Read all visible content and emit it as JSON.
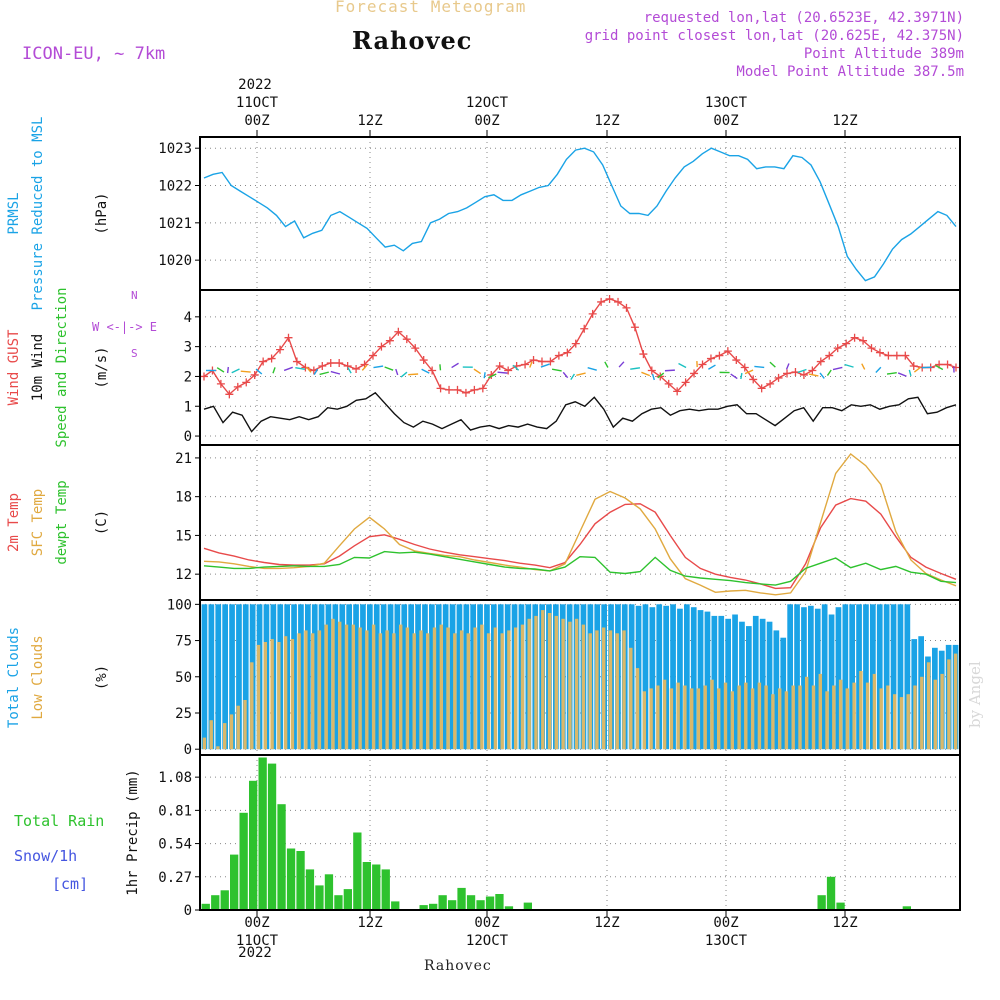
{
  "header": {
    "title": "Forecast Meteogram",
    "location": "Rahovec",
    "model": "ICON-EU, ~ 7km",
    "requested": "requested lon,lat (20.6523E, 42.3971N)",
    "gridpoint": "grid point closest lon,lat (20.625E, 42.375N)",
    "altitude": "Point Altitude 389m",
    "model_altitude": "Model Point Altitude 387.5m"
  },
  "time_axis": {
    "top_year": "2022",
    "labels": [
      {
        "date": "11OCT",
        "hour": "00Z"
      },
      {
        "date": "",
        "hour": "12Z"
      },
      {
        "date": "12OCT",
        "hour": "00Z"
      },
      {
        "date": "",
        "hour": "12Z"
      },
      {
        "date": "13OCT",
        "hour": "00Z"
      },
      {
        "date": "",
        "hour": "12Z"
      }
    ],
    "bottom_year": "2022"
  },
  "footer": "Rahovec",
  "credit": "by Angel",
  "chart_data": [
    {
      "type": "line",
      "panel": "pressure",
      "ylabel_lines": [
        {
          "text": "PRMSL",
          "color": "#1aa3e6"
        },
        {
          "text": "Pressure Reduced to MSL",
          "color": "#1aa3e6"
        }
      ],
      "unit": "(hPa)",
      "ylim": [
        1019.2,
        1023.3
      ],
      "yticks": [
        1020,
        1021,
        1022,
        1023
      ],
      "series": [
        {
          "name": "PRMSL",
          "color": "#1aa3e6",
          "values": [
            1022.2,
            1022.3,
            1022.35,
            1022.0,
            1021.85,
            1021.7,
            1021.55,
            1021.4,
            1021.2,
            1020.9,
            1021.05,
            1020.6,
            1020.72,
            1020.8,
            1021.2,
            1021.3,
            1021.15,
            1021.0,
            1020.85,
            1020.6,
            1020.35,
            1020.4,
            1020.25,
            1020.45,
            1020.5,
            1021.0,
            1021.1,
            1021.25,
            1021.3,
            1021.4,
            1021.55,
            1021.7,
            1021.75,
            1021.6,
            1021.6,
            1021.75,
            1021.85,
            1021.95,
            1022.0,
            1022.3,
            1022.7,
            1022.95,
            1023.0,
            1022.9,
            1022.55,
            1022.0,
            1021.45,
            1021.25,
            1021.25,
            1021.2,
            1021.45,
            1021.85,
            1022.2,
            1022.5,
            1022.65,
            1022.85,
            1023.0,
            1022.9,
            1022.8,
            1022.8,
            1022.7,
            1022.45,
            1022.5,
            1022.5,
            1022.45,
            1022.8,
            1022.75,
            1022.55,
            1022.1,
            1021.5,
            1020.9,
            1020.1,
            1019.75,
            1019.45,
            1019.55,
            1019.9,
            1020.3,
            1020.55,
            1020.7,
            1020.9,
            1021.1,
            1021.3,
            1021.2,
            1020.9
          ]
        }
      ]
    },
    {
      "type": "line",
      "panel": "wind",
      "ylabel_lines": [
        {
          "text": "Wind GUST",
          "color": "#e84a4a"
        },
        {
          "text": "10m Wind",
          "color": "#111111"
        },
        {
          "text": "Speed and Direction",
          "color": "#2ec22e"
        }
      ],
      "unit": "(m/s)",
      "compass": {
        "west": "W",
        "east": "E",
        "north": "N",
        "south": "S"
      },
      "ylim": [
        -0.3,
        4.9
      ],
      "yticks": [
        0,
        1,
        2,
        3,
        4
      ],
      "series": [
        {
          "name": "Wind GUST",
          "color": "#e84a4a",
          "marker": "+",
          "values": [
            2.0,
            2.2,
            1.75,
            1.4,
            1.65,
            1.8,
            2.05,
            2.5,
            2.6,
            2.9,
            3.3,
            2.5,
            2.3,
            2.2,
            2.35,
            2.45,
            2.45,
            2.35,
            2.25,
            2.4,
            2.7,
            3.0,
            3.2,
            3.5,
            3.25,
            2.95,
            2.55,
            2.2,
            1.6,
            1.55,
            1.55,
            1.45,
            1.55,
            1.6,
            2.05,
            2.35,
            2.2,
            2.35,
            2.4,
            2.55,
            2.5,
            2.5,
            2.7,
            2.8,
            3.1,
            3.6,
            4.1,
            4.5,
            4.6,
            4.5,
            4.3,
            3.65,
            2.75,
            2.2,
            2.0,
            1.75,
            1.5,
            1.8,
            2.1,
            2.4,
            2.6,
            2.7,
            2.85,
            2.55,
            2.3,
            1.9,
            1.6,
            1.75,
            1.95,
            2.1,
            2.15,
            2.05,
            2.2,
            2.5,
            2.7,
            2.95,
            3.1,
            3.3,
            3.2,
            2.95,
            2.8,
            2.7,
            2.7,
            2.7,
            2.35,
            2.3,
            2.3,
            2.4,
            2.4,
            2.3
          ]
        },
        {
          "name": "10m Wind",
          "color": "#111111",
          "values": [
            0.9,
            1.0,
            0.45,
            0.8,
            0.7,
            0.15,
            0.5,
            0.65,
            0.6,
            0.55,
            0.65,
            0.55,
            0.65,
            0.95,
            0.9,
            1.0,
            1.2,
            1.25,
            1.45,
            1.1,
            0.75,
            0.45,
            0.3,
            0.5,
            0.4,
            0.25,
            0.4,
            0.55,
            0.2,
            0.3,
            0.35,
            0.25,
            0.35,
            0.3,
            0.4,
            0.3,
            0.25,
            0.5,
            1.05,
            1.15,
            1.0,
            1.3,
            0.9,
            0.3,
            0.6,
            0.5,
            0.75,
            0.9,
            0.95,
            0.7,
            0.85,
            0.9,
            0.85,
            0.9,
            0.9,
            1.0,
            1.05,
            0.75,
            0.75,
            0.55,
            0.35,
            0.6,
            0.85,
            0.95,
            0.5,
            0.95,
            0.95,
            0.85,
            1.05,
            1.0,
            1.05,
            0.9,
            1.0,
            1.05,
            1.25,
            1.3,
            0.75,
            0.8,
            0.95,
            1.05
          ]
        }
      ]
    },
    {
      "type": "line",
      "panel": "temperature",
      "ylabel_lines": [
        {
          "text": "2m Temp",
          "color": "#e84a4a"
        },
        {
          "text": "SFC Temp",
          "color": "#e0a940"
        },
        {
          "text": "dewpt Temp",
          "color": "#2ec22e"
        }
      ],
      "unit": "(C)",
      "ylim": [
        10.0,
        22.0
      ],
      "yticks": [
        12,
        15,
        18,
        21
      ],
      "series": [
        {
          "name": "2m Temp",
          "color": "#e84a4a",
          "values": [
            14.0,
            13.65,
            13.4,
            13.1,
            12.9,
            12.75,
            12.7,
            12.7,
            12.8,
            13.4,
            14.2,
            14.9,
            15.05,
            14.7,
            14.3,
            13.95,
            13.7,
            13.5,
            13.35,
            13.2,
            13.05,
            12.85,
            12.7,
            12.5,
            12.9,
            14.3,
            15.9,
            16.8,
            17.4,
            17.45,
            16.8,
            15.0,
            13.3,
            12.45,
            12.0,
            11.75,
            11.55,
            11.25,
            10.9,
            10.95,
            12.8,
            15.6,
            17.35,
            17.85,
            17.65,
            16.65,
            14.9,
            13.3,
            12.55,
            12.05,
            11.6
          ]
        },
        {
          "name": "SFC Temp",
          "color": "#e0a940",
          "values": [
            13.0,
            12.95,
            12.8,
            12.6,
            12.45,
            12.45,
            12.5,
            12.6,
            12.85,
            14.2,
            15.5,
            16.4,
            15.5,
            14.3,
            13.8,
            13.6,
            13.45,
            13.35,
            13.1,
            12.9,
            12.7,
            12.55,
            12.35,
            12.25,
            12.8,
            15.3,
            17.8,
            18.4,
            17.9,
            17.05,
            15.5,
            13.2,
            11.65,
            11.15,
            10.6,
            10.7,
            10.75,
            10.55,
            10.4,
            10.55,
            12.2,
            16.0,
            19.8,
            21.3,
            20.4,
            18.95,
            15.3,
            13.1,
            12.05,
            11.55,
            11.1
          ]
        },
        {
          "name": "dewpt Temp",
          "color": "#2ec22e",
          "values": [
            12.65,
            12.55,
            12.45,
            12.45,
            12.55,
            12.6,
            12.65,
            12.6,
            12.6,
            12.75,
            13.3,
            13.25,
            13.75,
            13.65,
            13.7,
            13.55,
            13.35,
            13.15,
            12.95,
            12.75,
            12.55,
            12.45,
            12.4,
            12.25,
            12.55,
            13.35,
            13.3,
            12.15,
            12.05,
            12.2,
            13.3,
            12.3,
            11.85,
            11.7,
            11.6,
            11.5,
            11.35,
            11.25,
            11.15,
            11.45,
            12.45,
            12.85,
            13.25,
            12.5,
            12.85,
            12.35,
            12.6,
            12.15,
            12.0,
            11.45,
            11.35
          ]
        }
      ]
    },
    {
      "type": "bar",
      "panel": "clouds",
      "ylabel_lines": [
        {
          "text": "Total Clouds",
          "color": "#1aa3e6"
        },
        {
          "text": "Low Clouds",
          "color": "#e0a940"
        }
      ],
      "unit": "(%)",
      "ylim": [
        -4,
        103
      ],
      "yticks": [
        0,
        25,
        50,
        75,
        100
      ],
      "series": [
        {
          "name": "Total Clouds",
          "color": "#1aa3e6",
          "values": [
            100,
            100,
            100,
            100,
            100,
            100,
            100,
            100,
            100,
            100,
            100,
            100,
            100,
            100,
            100,
            100,
            100,
            100,
            100,
            100,
            100,
            100,
            100,
            100,
            100,
            100,
            100,
            100,
            100,
            100,
            100,
            100,
            100,
            100,
            100,
            100,
            100,
            100,
            100,
            100,
            100,
            100,
            100,
            100,
            100,
            100,
            100,
            100,
            100,
            100,
            100,
            100,
            100,
            100,
            100,
            100,
            100,
            100,
            100,
            100,
            100,
            100,
            100,
            99,
            100,
            98,
            100,
            99,
            100,
            97,
            100,
            98,
            96,
            95,
            92,
            92,
            90,
            93,
            88,
            85,
            92,
            90,
            88,
            82,
            77,
            100,
            100,
            98,
            99,
            97,
            100,
            93,
            98,
            100,
            100,
            100,
            100,
            100,
            100,
            100,
            100,
            100,
            100,
            76,
            78,
            64,
            70,
            68,
            72,
            72
          ]
        },
        {
          "name": "Low Clouds",
          "color": "#d9b86a",
          "values": [
            8,
            20,
            2,
            18,
            24,
            30,
            34,
            60,
            72,
            74,
            76,
            74,
            78,
            76,
            80,
            82,
            80,
            82,
            86,
            90,
            88,
            86,
            86,
            84,
            82,
            86,
            80,
            82,
            80,
            86,
            84,
            80,
            82,
            80,
            84,
            86,
            84,
            80,
            82,
            80,
            84,
            86,
            80,
            84,
            80,
            82,
            84,
            86,
            90,
            92,
            96,
            94,
            92,
            90,
            88,
            90,
            86,
            80,
            82,
            84,
            82,
            80,
            82,
            70,
            56,
            40,
            42,
            44,
            48,
            42,
            46,
            44,
            42,
            42,
            44,
            48,
            42,
            46,
            40,
            44,
            46,
            42,
            46,
            44,
            38,
            42,
            40,
            44,
            44,
            50,
            44,
            52,
            40,
            44,
            48,
            42,
            46,
            54,
            46,
            52,
            42,
            44,
            38,
            36,
            38,
            44,
            50,
            60,
            48,
            52,
            62,
            66
          ]
        }
      ]
    },
    {
      "type": "bar",
      "panel": "precipitation",
      "ylabel_lines": [
        {
          "text": "Total  Rain",
          "color": "#2ec22e"
        },
        {
          "text": "Snow/1h",
          "color": "#4455e0"
        },
        {
          "text": "[cm]",
          "color": "#4455e0"
        }
      ],
      "ylabel": "1hr Precip (mm)",
      "ylim": [
        0,
        1.26
      ],
      "yticks": [
        0,
        0.27,
        0.54,
        0.81,
        1.08
      ],
      "tick_labels": [
        "0",
        "0.27",
        "0.54",
        "0.81",
        "1.08"
      ],
      "series": [
        {
          "name": "Total Rain",
          "color": "#2ec22e",
          "values": [
            0.05,
            0.12,
            0.16,
            0.45,
            0.79,
            1.05,
            1.24,
            1.19,
            0.86,
            0.5,
            0.48,
            0.33,
            0.2,
            0.29,
            0.12,
            0.17,
            0.63,
            0.39,
            0.37,
            0.33,
            0.07,
            0,
            0,
            0.04,
            0.05,
            0.12,
            0.08,
            0.18,
            0.12,
            0.08,
            0.11,
            0.13,
            0.03,
            0,
            0.06,
            0,
            0,
            0,
            0,
            0,
            0,
            0,
            0,
            0,
            0,
            0,
            0,
            0,
            0,
            0,
            0,
            0,
            0,
            0,
            0,
            0,
            0,
            0,
            0,
            0,
            0,
            0,
            0,
            0,
            0,
            0.12,
            0.27,
            0.06,
            0,
            0,
            0,
            0,
            0,
            0,
            0.03,
            0,
            0,
            0,
            0,
            0
          ]
        }
      ]
    }
  ]
}
